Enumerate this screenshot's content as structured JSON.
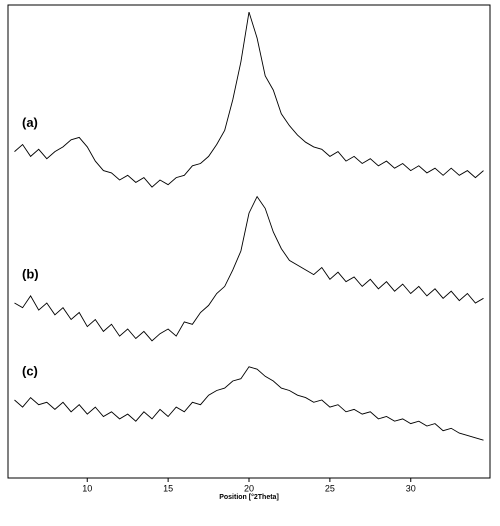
{
  "chart_data": {
    "type": "line",
    "xlabel": "Position [°2Theta]",
    "xlim": [
      5.1,
      34.9
    ],
    "xticks": [
      10,
      15,
      20,
      25,
      30
    ],
    "ylim": [
      0,
      100
    ],
    "x": [
      5.5,
      6,
      6.5,
      7,
      7.5,
      8,
      8.5,
      9,
      9.5,
      10,
      10.5,
      11,
      11.5,
      12,
      12.5,
      13,
      13.5,
      14,
      14.5,
      15,
      15.5,
      16,
      16.5,
      17,
      17.5,
      18,
      18.5,
      19,
      19.5,
      20,
      20.5,
      21,
      21.5,
      22,
      22.5,
      23,
      23.5,
      24,
      24.5,
      25,
      25.5,
      26,
      26.5,
      27,
      27.5,
      28,
      28.5,
      29,
      29.5,
      30,
      30.5,
      31,
      31.5,
      32,
      32.5,
      33,
      33.5,
      34,
      34.5
    ],
    "series": [
      {
        "name": "(a)",
        "color": "#000000",
        "values": [
          69,
          70.5,
          68,
          69.5,
          67.5,
          69,
          70,
          71.5,
          72,
          70,
          67,
          65,
          64.5,
          63,
          64,
          62.5,
          63.5,
          61.5,
          63,
          62,
          63.5,
          64,
          66,
          66.5,
          68,
          70.5,
          73.5,
          80,
          88,
          98.5,
          93,
          85,
          82,
          77,
          74.5,
          72.5,
          71,
          70,
          69.5,
          68,
          69,
          67,
          68,
          66.5,
          67.5,
          66,
          67,
          65.5,
          66.5,
          65,
          66,
          64.5,
          65.5,
          64,
          65.5,
          64,
          65,
          63.5,
          65
        ]
      },
      {
        "name": "(b)",
        "color": "#000000",
        "values": [
          37,
          36,
          38.5,
          35.5,
          37,
          34.5,
          36,
          33.5,
          35,
          32,
          33.5,
          31,
          32.5,
          30,
          31.5,
          29.5,
          31,
          29,
          30.5,
          31.5,
          30,
          33,
          32.5,
          35,
          36.5,
          39,
          40.5,
          44,
          48,
          56,
          59.5,
          57,
          52,
          48.5,
          46,
          45,
          44,
          43,
          44.5,
          42,
          43.5,
          41.5,
          42.5,
          40.5,
          42,
          40,
          41.5,
          39.5,
          41,
          39,
          40.5,
          38.5,
          40,
          38,
          39.5,
          37.5,
          39,
          37,
          38
        ]
      },
      {
        "name": "(c)",
        "color": "#000000",
        "values": [
          16.5,
          15,
          17,
          15.5,
          16,
          14.5,
          16,
          14,
          15.5,
          13.5,
          15,
          13,
          14,
          12.5,
          13.5,
          12,
          14,
          12.5,
          14.5,
          13,
          15,
          14,
          16,
          15.5,
          17.5,
          18.5,
          19,
          20.5,
          21,
          23.5,
          23,
          21.5,
          20.5,
          19,
          18.5,
          17.5,
          17,
          16,
          16.5,
          15,
          15.5,
          14,
          14.5,
          13.5,
          14,
          12.5,
          13,
          12,
          12.5,
          11.5,
          12,
          11,
          11.5,
          10,
          10.5,
          9.5,
          9,
          8.5,
          8
        ]
      }
    ]
  }
}
